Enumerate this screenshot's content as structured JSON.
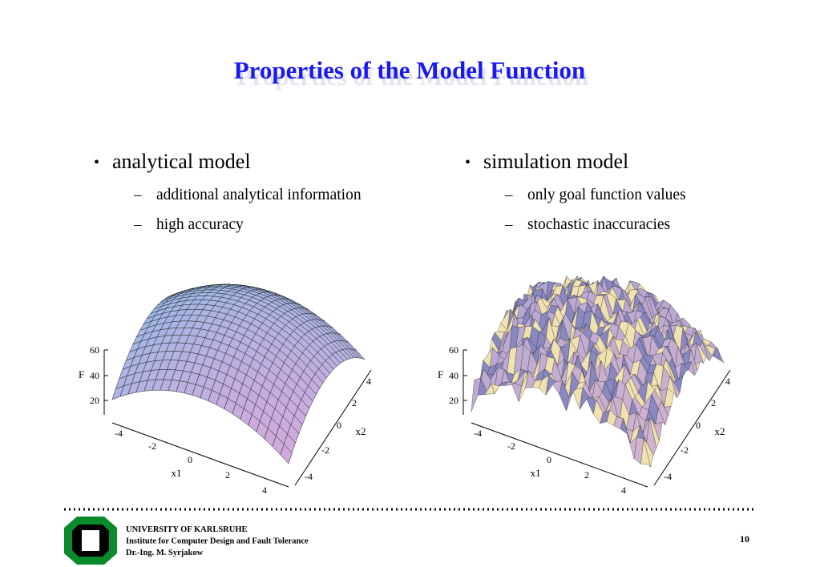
{
  "title": "Properties of the Model Function",
  "columns": [
    {
      "heading": "analytical model",
      "items": [
        "additional analytical information",
        "high accuracy"
      ]
    },
    {
      "heading": "simulation model",
      "items": [
        "only goal function values",
        "stochastic inaccuracies"
      ]
    }
  ],
  "plots": [
    {
      "z_label": "F",
      "z_ticks": [
        60,
        40,
        20
      ],
      "x1_label": "x1",
      "x1_ticks": [
        -4,
        -2,
        0,
        2,
        4
      ],
      "x2_label": "x2",
      "x2_ticks": [
        4,
        2,
        0,
        -2,
        -4
      ]
    },
    {
      "z_label": "F",
      "z_ticks": [
        60,
        40,
        20
      ],
      "x1_label": "x1",
      "x1_ticks": [
        -4,
        -2,
        0,
        2,
        4
      ],
      "x2_label": "x2",
      "x2_ticks": [
        4,
        2,
        0,
        -2,
        -4
      ]
    }
  ],
  "footer": {
    "lines": [
      "UNIVERSITY OF KARLSRUHE",
      "Institute for Computer Design and Fault Tolerance",
      "Dr.-Ing. M. Syrjakow"
    ],
    "page": "10"
  }
}
